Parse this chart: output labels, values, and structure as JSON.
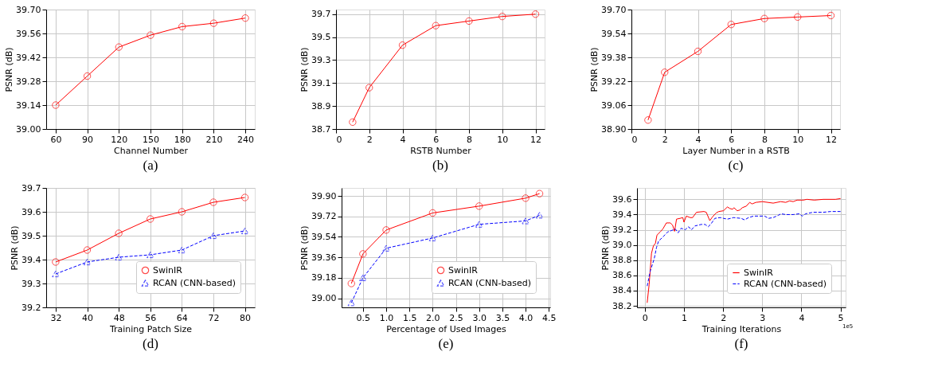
{
  "chart_data": [
    {
      "type": "line",
      "title": "(a)",
      "xlabel": "Channel Number",
      "ylabel": "PSNR (dB)",
      "x": [
        60,
        90,
        120,
        150,
        180,
        210,
        240
      ],
      "values": [
        39.14,
        39.31,
        39.48,
        39.55,
        39.6,
        39.62,
        39.65
      ],
      "color": "#ff0000",
      "marker": "circle",
      "line_style": "solid",
      "xlim": [
        51,
        249
      ],
      "xticks": [
        60,
        90,
        120,
        150,
        180,
        210,
        240
      ],
      "ylim": [
        39.0,
        39.7
      ],
      "yticks": [
        {
          "value": 39.0,
          "label": "39.00"
        },
        39.14,
        39.28,
        39.42,
        39.56,
        {
          "value": 39.7,
          "label": "39.70"
        }
      ],
      "grid": true
    },
    {
      "type": "line",
      "title": "(b)",
      "xlabel": "RSTB Number",
      "ylabel": "PSNR (dB)",
      "x": [
        1,
        2,
        4,
        6,
        8,
        10,
        12
      ],
      "values": [
        38.76,
        39.06,
        39.43,
        39.6,
        39.64,
        39.68,
        39.7
      ],
      "color": "#ff0000",
      "marker": "circle",
      "line_style": "solid",
      "xlim": [
        0,
        12.55
      ],
      "xticks": [
        0,
        2,
        4,
        6,
        8,
        10,
        12
      ],
      "ylim": [
        38.7,
        39.74
      ],
      "yticks": [
        38.7,
        38.9,
        39.1,
        39.3,
        39.5,
        39.7
      ],
      "grid": true
    },
    {
      "type": "line",
      "title": "(c)",
      "xlabel": "Layer Number in a RSTB",
      "ylabel": "PSNR (dB)",
      "x": [
        1,
        2,
        4,
        6,
        8,
        10,
        12
      ],
      "values": [
        38.96,
        39.28,
        39.42,
        39.6,
        39.64,
        39.65,
        39.66
      ],
      "color": "#ff0000",
      "marker": "circle",
      "line_style": "solid",
      "xlim": [
        0,
        12.55
      ],
      "xticks": [
        0,
        2,
        4,
        6,
        8,
        10,
        12
      ],
      "ylim": [
        38.9,
        39.7
      ],
      "yticks": [
        {
          "value": 38.9,
          "label": "38.90"
        },
        39.06,
        39.22,
        39.38,
        39.54,
        {
          "value": 39.7,
          "label": "39.70"
        }
      ],
      "grid": true
    },
    {
      "type": "line",
      "title": "(d)",
      "xlabel": "Training Patch Size",
      "ylabel": "PSNR (dB)",
      "x": [
        32,
        40,
        48,
        56,
        64,
        72,
        80
      ],
      "series": [
        {
          "name": "SwinIR",
          "color": "#ff0000",
          "marker": "circle",
          "line_style": "solid",
          "values": [
            39.39,
            39.44,
            39.51,
            39.57,
            39.6,
            39.64,
            39.66
          ]
        },
        {
          "name": "RCAN (CNN-based)",
          "color": "#0000ff",
          "marker": "triangle",
          "line_style": "dashed",
          "values": [
            39.34,
            39.39,
            39.41,
            39.42,
            39.44,
            39.5,
            39.52
          ]
        }
      ],
      "xlim": [
        29.6,
        82.5
      ],
      "xticks": [
        32,
        40,
        48,
        56,
        64,
        72,
        80
      ],
      "ylim": [
        39.2,
        39.7
      ],
      "yticks": [
        39.2,
        39.3,
        39.4,
        39.5,
        39.6,
        39.7
      ],
      "grid": true,
      "legend": "bottom right"
    },
    {
      "type": "line",
      "title": "(e)",
      "xlabel": "Percentage of Used Images",
      "ylabel": "PSNR (dB)",
      "x": [
        0.25,
        0.5,
        1.0,
        2.0,
        3.0,
        4.0,
        4.3
      ],
      "series": [
        {
          "name": "SwinIR",
          "color": "#ff0000",
          "marker": "circle",
          "line_style": "solid",
          "values": [
            39.13,
            39.39,
            39.6,
            39.75,
            39.81,
            39.88,
            39.92
          ]
        },
        {
          "name": "RCAN (CNN-based)",
          "color": "#0000ff",
          "marker": "triangle",
          "line_style": "dashed",
          "values": [
            38.96,
            39.18,
            39.44,
            39.53,
            39.65,
            39.68,
            39.73
          ]
        }
      ],
      "xlim": [
        0.04,
        4.53
      ],
      "xticks": [
        0.5,
        {
          "value": 1,
          "label": "1.0"
        },
        1.5,
        {
          "value": 2,
          "label": "2.0"
        },
        2.5,
        {
          "value": 3,
          "label": "3.0"
        },
        3.5,
        {
          "value": 4,
          "label": "4.0"
        },
        4.5
      ],
      "ylim": [
        38.92,
        39.97
      ],
      "yticks": [
        {
          "value": 39.0,
          "label": "39.00"
        },
        39.18,
        39.36,
        39.54,
        39.72,
        {
          "value": 39.9,
          "label": "39.90"
        }
      ],
      "grid": true,
      "legend": "bottom right"
    },
    {
      "type": "line",
      "title": "(f)",
      "xlabel": "Training Iterations",
      "ylabel": "PSNR (dB)",
      "annotations": [
        "1e5"
      ],
      "series": [
        {
          "name": "SwinIR",
          "color": "#ff0000",
          "marker": "none",
          "line_style": "solid",
          "x": [
            0.06,
            0.11,
            0.17,
            0.22,
            0.27,
            0.31,
            0.39,
            0.46,
            0.55,
            0.65,
            0.71,
            0.76,
            0.81,
            0.9,
            0.97,
            1.0,
            1.06,
            1.16,
            1.22,
            1.32,
            1.51,
            1.57,
            1.66,
            1.73,
            1.82,
            1.89,
            2.01,
            2.11,
            2.17,
            2.24,
            2.28,
            2.36,
            2.43,
            2.49,
            2.59,
            2.68,
            2.74,
            2.84,
            3.0,
            3.28,
            3.47,
            3.6,
            3.7,
            3.79,
            3.89,
            4.05,
            4.14,
            4.33,
            4.56,
            4.87,
            5.0
          ],
          "values": [
            38.24,
            38.48,
            38.89,
            38.99,
            39.02,
            39.13,
            39.17,
            39.21,
            39.29,
            39.29,
            39.26,
            39.18,
            39.34,
            39.35,
            39.36,
            39.3,
            39.38,
            39.36,
            39.36,
            39.43,
            39.44,
            39.43,
            39.32,
            39.37,
            39.42,
            39.44,
            39.45,
            39.5,
            39.48,
            39.47,
            39.49,
            39.45,
            39.46,
            39.49,
            39.51,
            39.56,
            39.54,
            39.56,
            39.57,
            39.55,
            39.57,
            39.56,
            39.58,
            39.57,
            39.59,
            39.59,
            39.6,
            39.59,
            39.6,
            39.6,
            39.61
          ]
        },
        {
          "name": "RCAN (CNN-based)",
          "color": "#0000ff",
          "marker": "none",
          "line_style": "dashed",
          "x": [
            0.06,
            0.14,
            0.24,
            0.3,
            0.35,
            0.41,
            0.49,
            0.58,
            0.68,
            0.78,
            0.85,
            0.93,
            1.03,
            1.12,
            1.19,
            1.28,
            1.44,
            1.54,
            1.62,
            1.68,
            1.79,
            1.92,
            2.01,
            2.11,
            2.27,
            2.46,
            2.55,
            2.65,
            2.78,
            2.9,
            3.06,
            3.16,
            3.28,
            3.41,
            3.48,
            3.6,
            3.79,
            3.95,
            4.02,
            4.11,
            4.3,
            4.56,
            4.75,
            5.0
          ],
          "values": [
            38.46,
            38.66,
            38.82,
            38.97,
            39.05,
            39.08,
            39.12,
            39.17,
            39.19,
            39.21,
            39.16,
            39.22,
            39.2,
            39.24,
            39.2,
            39.25,
            39.27,
            39.27,
            39.24,
            39.27,
            39.35,
            39.36,
            39.35,
            39.34,
            39.36,
            39.35,
            39.33,
            39.36,
            39.38,
            39.38,
            39.38,
            39.35,
            39.36,
            39.39,
            39.41,
            39.4,
            39.4,
            39.41,
            39.38,
            39.41,
            39.43,
            39.43,
            39.44,
            39.44
          ]
        }
      ],
      "xlim": [
        -0.2,
        5.13
      ],
      "xticks": [
        0,
        1,
        2,
        3,
        4,
        5
      ],
      "ylim": [
        38.18,
        39.75
      ],
      "yticks": [
        38.2,
        38.4,
        38.6,
        38.8,
        {
          "value": 39.0,
          "label": "39.0"
        },
        39.2,
        39.4,
        39.6
      ],
      "grid": true,
      "legend": "bottom right"
    }
  ]
}
